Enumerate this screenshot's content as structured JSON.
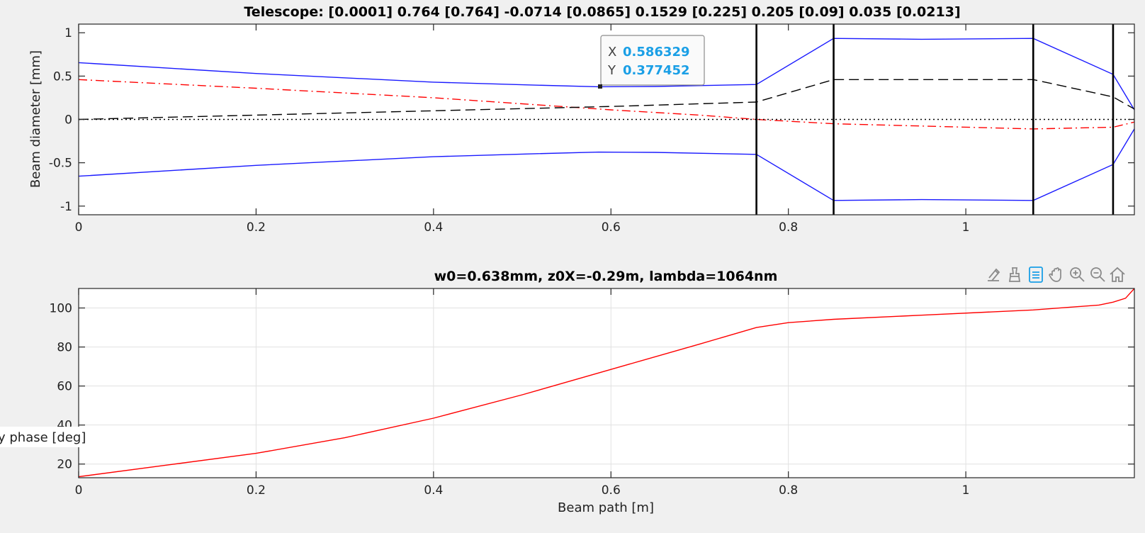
{
  "chart_data": [
    {
      "type": "line",
      "title": "Telescope: [0.0001] 0.764 [0.764] -0.0714 [0.0865] 0.1529 [0.225] 0.205 [0.09] 0.035 [0.0213]",
      "xlabel": "",
      "ylabel": "Beam diameter [mm]",
      "xlim": [
        0,
        1.19
      ],
      "ylim": [
        -1.1,
        1.1
      ],
      "xticks": [
        0,
        0.2,
        0.4,
        0.6,
        0.8,
        1
      ],
      "xtick_labels": [
        "0",
        "0.2",
        "0.4",
        "0.6",
        "0.8",
        "1"
      ],
      "yticks": [
        1,
        0.5,
        0,
        -0.5,
        -1
      ],
      "ytick_labels": [
        "1",
        "0.5",
        "0",
        "-0.5",
        "-1"
      ],
      "grid": false,
      "series": [
        {
          "style": "solid",
          "color": "#1a1aff",
          "x": [
            0,
            0.2,
            0.4,
            0.5,
            0.586,
            0.65,
            0.764,
            0.851,
            0.95,
            1.076,
            1.166,
            1.19
          ],
          "y": [
            0.655,
            0.53,
            0.43,
            0.4,
            0.377,
            0.38,
            0.403,
            0.935,
            0.925,
            0.935,
            0.52,
            0.11
          ]
        },
        {
          "style": "solid",
          "color": "#1a1aff",
          "x": [
            0,
            0.2,
            0.4,
            0.5,
            0.586,
            0.65,
            0.764,
            0.851,
            0.95,
            1.076,
            1.166,
            1.19
          ],
          "y": [
            -0.655,
            -0.53,
            -0.43,
            -0.4,
            -0.377,
            -0.38,
            -0.403,
            -0.935,
            -0.925,
            -0.935,
            -0.52,
            -0.11
          ]
        },
        {
          "style": "dashdot",
          "color": "#ff0000",
          "x": [
            0,
            0.2,
            0.4,
            0.6,
            0.7,
            0.764,
            0.851,
            1.076,
            1.166,
            1.19
          ],
          "y": [
            0.46,
            0.36,
            0.25,
            0.11,
            0.05,
            0.0,
            -0.05,
            -0.11,
            -0.09,
            -0.03
          ]
        },
        {
          "style": "dashed",
          "color": "#000000",
          "x": [
            0,
            0.2,
            0.4,
            0.6,
            0.764,
            0.851,
            1.076,
            1.166,
            1.19
          ],
          "y": [
            0.0,
            0.05,
            0.1,
            0.15,
            0.2,
            0.46,
            0.46,
            0.26,
            0.12
          ]
        },
        {
          "style": "dotted",
          "color": "#000000",
          "x": [
            0,
            1.19
          ],
          "y": [
            0,
            0
          ]
        }
      ],
      "vertical_lines": [
        0.764,
        0.851,
        1.076,
        1.166
      ],
      "datatip": {
        "x_label": "X",
        "x_value": "0.586329",
        "y_label": "Y",
        "y_value": "0.377452"
      }
    },
    {
      "type": "line",
      "title": "w0=0.638mm, z0X=-0.29m, lambda=1064nm",
      "xlabel": "Beam path [m]",
      "ylabel": "y phase [deg]",
      "xlim": [
        0,
        1.19
      ],
      "ylim": [
        13,
        110
      ],
      "xticks": [
        0,
        0.2,
        0.4,
        0.6,
        0.8,
        1
      ],
      "xtick_labels": [
        "0",
        "0.2",
        "0.4",
        "0.6",
        "0.8",
        "1"
      ],
      "yticks": [
        100,
        80,
        60,
        40,
        20
      ],
      "ytick_labels": [
        "100",
        "80",
        "60",
        "40",
        "20"
      ],
      "grid": true,
      "series": [
        {
          "style": "solid",
          "color": "#ff0000",
          "x": [
            0,
            0.1,
            0.2,
            0.3,
            0.4,
            0.5,
            0.6,
            0.7,
            0.764,
            0.8,
            0.851,
            0.95,
            1.076,
            1.15,
            1.166,
            1.18,
            1.19
          ],
          "y": [
            13.5,
            19.5,
            25.5,
            33.5,
            43.5,
            55.5,
            68.5,
            81.5,
            90,
            92.5,
            94.2,
            96.3,
            99,
            101.5,
            103,
            105,
            110
          ]
        }
      ]
    }
  ],
  "toolbar": {
    "icons": [
      "export-icon",
      "brush-icon",
      "datatip-icon",
      "pan-icon",
      "zoom-in-icon",
      "zoom-out-icon",
      "home-icon"
    ],
    "active_color": "#1a9fe6",
    "icon_color": "#8a8a8a"
  }
}
